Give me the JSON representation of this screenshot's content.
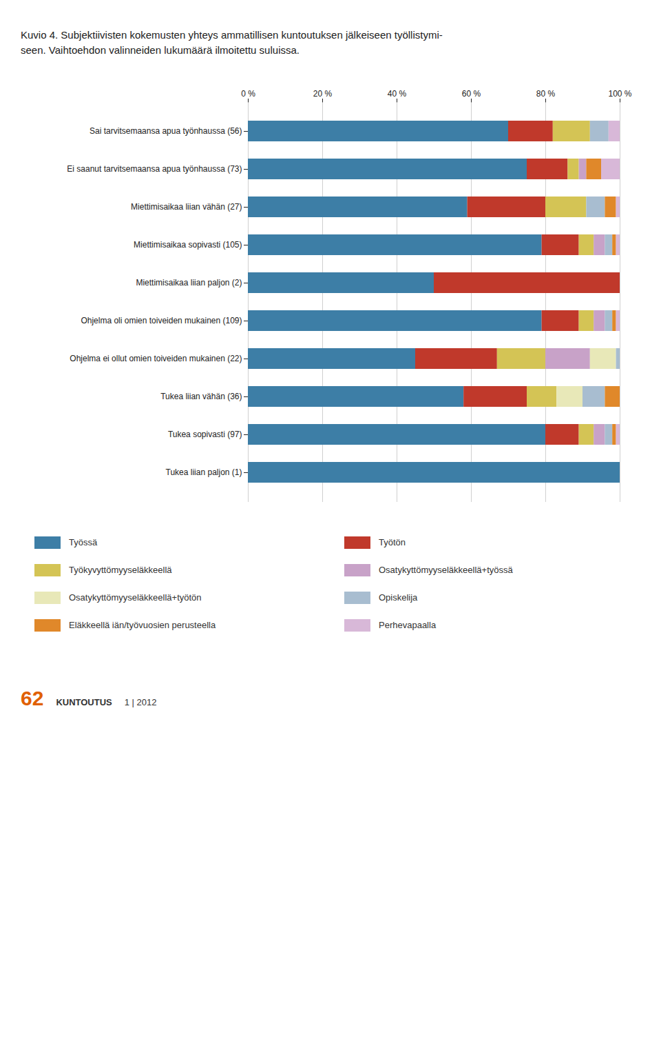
{
  "chart_data": {
    "type": "bar",
    "orientation": "horizontal",
    "stacked": true,
    "title": "Kuvio 4. Subjektiivisten kokemusten yhteys ammatillisen kuntoutuksen jälkeiseen työllistymi-",
    "subtitle": "seen.  Vaihtoehdon valinneiden lukumäärä ilmoitettu suluissa.",
    "annotations": [
      "62",
      "KUNTOUTUS",
      "1 | 2012"
    ],
    "categories": [
      "Sai tarvitsemaansa apua työnhaussa (56)",
      "Ei saanut tarvitsemaansa apua työnhaussa (73)",
      "Miettimisaikaa liian vähän (27)",
      "Miettimisaikaa sopivasti (105)",
      "Miettimisaikaa liian paljon (2)",
      "Ohjelma oli omien toiveiden mukainen (109)",
      "Ohjelma ei ollut omien toiveiden mukainen (22)",
      "Tukea liian vähän (36)",
      "Tukea sopivasti (97)",
      "Tukea liian paljon (1)"
    ],
    "series": [
      {
        "name": "Työssä",
        "color": "#3d7ea6",
        "values": [
          70,
          75,
          59,
          79,
          50,
          79,
          45,
          58,
          80,
          100
        ]
      },
      {
        "name": "Työtön",
        "color": "#c0392b",
        "values": [
          12,
          11,
          21,
          10,
          50,
          10,
          22,
          17,
          9,
          0
        ]
      },
      {
        "name": "Työkyvyttömyyseläkkeellä",
        "color": "#d4c455",
        "values": [
          10,
          3,
          11,
          4,
          0,
          4,
          13,
          8,
          4,
          0
        ]
      },
      {
        "name": "Osatykyttömyyseläkkeellä+työssä",
        "color": "#c8a2c8",
        "values": [
          0,
          2,
          0,
          3,
          0,
          3,
          12,
          0,
          3,
          0
        ]
      },
      {
        "name": "Osatykyttömyyseläkkeellä+työtön",
        "color": "#e8e8b8",
        "values": [
          0,
          0,
          0,
          0,
          0,
          0,
          7,
          7,
          0,
          0
        ]
      },
      {
        "name": "Opiskelija",
        "color": "#a8bdd0",
        "values": [
          5,
          0,
          5,
          2,
          0,
          2,
          1,
          6,
          2,
          0
        ]
      },
      {
        "name": "Eläkkeellä iän/työvuosien perusteella",
        "color": "#e0882a",
        "values": [
          0,
          4,
          3,
          1,
          0,
          1,
          0,
          4,
          1,
          0
        ]
      },
      {
        "name": "Perhevapaalla",
        "color": "#d8b8d8",
        "values": [
          3,
          5,
          1,
          1,
          0,
          1,
          0,
          0,
          1,
          0
        ]
      }
    ],
    "xlim": [
      0,
      100
    ],
    "xticks": [
      {
        "value": 0,
        "label": "0 %"
      },
      {
        "value": 20,
        "label": "20 %"
      },
      {
        "value": 40,
        "label": "40 %"
      },
      {
        "value": 60,
        "label": "60 %"
      },
      {
        "value": 80,
        "label": "80 %"
      },
      {
        "value": 100,
        "label": "100 %"
      }
    ],
    "grid": true,
    "legend": "bottom"
  }
}
